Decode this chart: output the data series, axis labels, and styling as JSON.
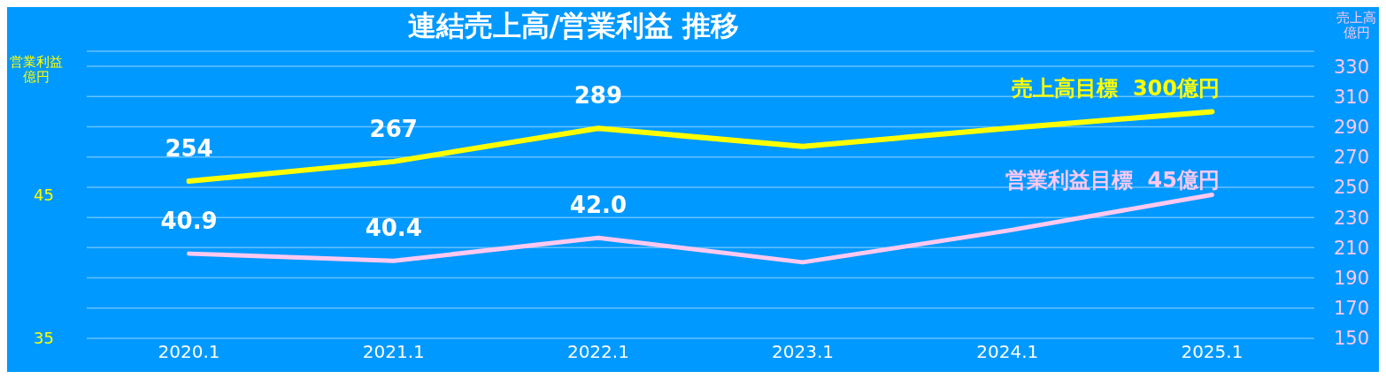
{
  "chart_data": {
    "type": "line",
    "title": "連結売上高/営業利益 推移",
    "categories": [
      "2020.1",
      "2021.1",
      "2022.1",
      "2023.1",
      "2024.1",
      "2025.1"
    ],
    "ylabel": "営業利益億円",
    "y2label": "売上高億円",
    "series": [
      {
        "color": "#ffff00",
        "axis": "y2",
        "values": [
          254,
          267,
          289,
          277,
          289,
          300
        ],
        "value_labels": [
          "254",
          "267",
          "289",
          null,
          null,
          null
        ]
      },
      {
        "color": "#ffc8f0",
        "values": [
          40.9,
          40.4,
          42.0,
          40.3,
          42.5,
          45
        ],
        "value_labels": [
          "40.9",
          "40.4",
          "42.0",
          null,
          null,
          null
        ]
      }
    ],
    "ylim": [
      35,
      55
    ],
    "yticks": [
      35,
      45
    ],
    "y2lim": [
      150,
      340
    ],
    "y2ticks": [
      150,
      170,
      190,
      210,
      230,
      250,
      270,
      290,
      310,
      330
    ],
    "annotations": [
      "売上高目標  300億円",
      "営業利益目標  45億円"
    ],
    "grid": "y2",
    "legend": false,
    "marker": "none",
    "line_style": "solid"
  }
}
